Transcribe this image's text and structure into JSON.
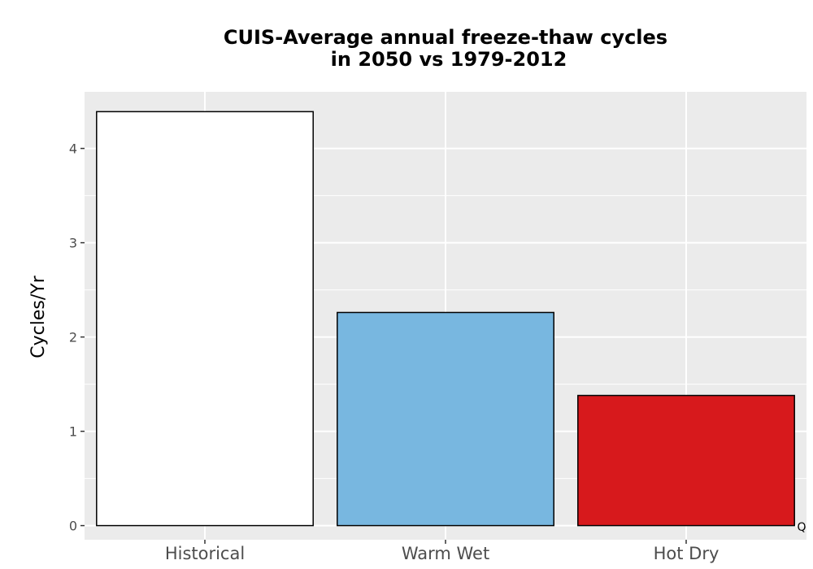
{
  "chart_data": {
    "type": "bar",
    "title_line1": "CUIS-Average annual freeze-thaw cycles",
    "title_line2": "in 2050 vs 1979-2012",
    "xlabel": "",
    "ylabel": "Cycles/Yr",
    "categories": [
      "Historical",
      "Warm Wet",
      "Hot Dry"
    ],
    "values": [
      4.39,
      2.26,
      1.38
    ],
    "colors": [
      "#ffffff",
      "#78b7e0",
      "#d7191c"
    ],
    "ylim": [
      -0.15,
      4.6
    ],
    "yticks": [
      0,
      1,
      2,
      3,
      4
    ],
    "grid": true,
    "panel_background": "#ebebeb",
    "bar_outline": "#000000",
    "corner_note": "Q"
  }
}
